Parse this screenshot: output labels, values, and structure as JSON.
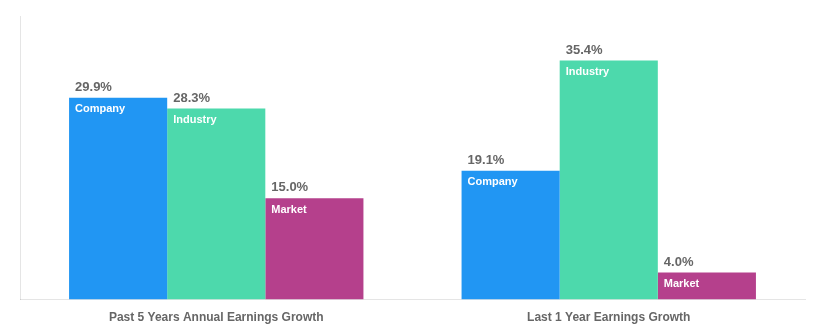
{
  "chart_data": {
    "type": "bar",
    "categories": [
      "Past 5 Years Annual Earnings Growth",
      "Last 1 Year Earnings Growth"
    ],
    "series": [
      {
        "name": "Company",
        "color": "#2196f3",
        "values": [
          29.9,
          19.1
        ],
        "value_labels": [
          "29.9%",
          "19.1%"
        ]
      },
      {
        "name": "Industry",
        "color": "#4dd9ac",
        "values": [
          28.3,
          35.4
        ],
        "value_labels": [
          "28.3%",
          "35.4%"
        ]
      },
      {
        "name": "Market",
        "color": "#b5408c",
        "values": [
          15.0,
          4.0
        ],
        "value_labels": [
          "15.0%",
          "4.0%"
        ]
      }
    ],
    "ylim": [
      0,
      42
    ],
    "grid": false,
    "data_labels": true,
    "tick_labels": "x"
  }
}
